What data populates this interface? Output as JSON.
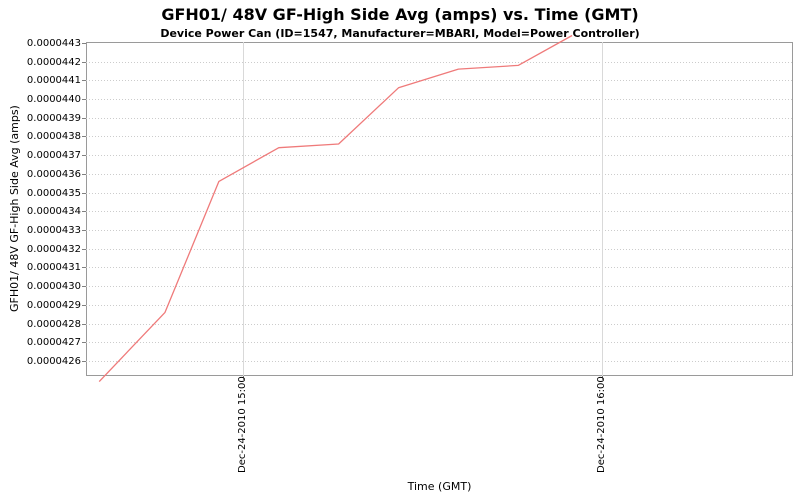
{
  "colors": {
    "series_line": "#ef7a7a",
    "grid_dotted": "#cccccc",
    "grid_vertical": "#d9d9d9",
    "plot_border": "#9a9a9a",
    "tick_mark": "#808080",
    "text": "#000000",
    "background": "#ffffff"
  },
  "chart_data": {
    "type": "line",
    "title": "GFH01/ 48V GF-High Side Avg (amps) vs. Time (GMT)",
    "subtitle": "Device Power Can (ID=1547, Manufacturer=MBARI, Model=Power Controller)",
    "xlabel": "Time (GMT)",
    "ylabel": "GFH01/ 48V GF-High Side Avg (amps)",
    "legend": "none",
    "grid": true,
    "y_ticks": [
      "0.0000443",
      "0.0000442",
      "0.0000441",
      "0.0000440",
      "0.0000439",
      "0.0000438",
      "0.0000437",
      "0.0000436",
      "0.0000435",
      "0.0000434",
      "0.0000433",
      "0.0000432",
      "0.0000431",
      "0.0000430",
      "0.0000429",
      "0.0000428",
      "0.0000427",
      "0.0000426"
    ],
    "x_ticks": [
      {
        "label": "Dec-24-2010 15:00",
        "t_min": 900
      },
      {
        "label": "Dec-24-2010 16:00",
        "t_min": 960
      }
    ],
    "x_range_min": [
      873.8,
      991.9
    ],
    "ylim": [
      4.252e-05,
      4.4305e-05
    ],
    "series": [
      {
        "name": "GFH01/ 48V GF-High Side Avg",
        "points": [
          {
            "t": "14:36",
            "t_min": 876,
            "v": 4.249e-05
          },
          {
            "t": "14:47",
            "t_min": 887,
            "v": 4.286e-05
          },
          {
            "t": "14:56",
            "t_min": 896,
            "v": 4.356e-05
          },
          {
            "t": "15:06",
            "t_min": 906,
            "v": 4.374e-05
          },
          {
            "t": "15:16",
            "t_min": 916,
            "v": 4.376e-05
          },
          {
            "t": "15:26",
            "t_min": 926,
            "v": 4.406e-05
          },
          {
            "t": "15:36",
            "t_min": 936,
            "v": 4.416e-05
          },
          {
            "t": "15:46",
            "t_min": 946,
            "v": 4.418e-05
          },
          {
            "t": "15:55",
            "t_min": 955,
            "v": 4.434e-05
          }
        ]
      }
    ]
  }
}
